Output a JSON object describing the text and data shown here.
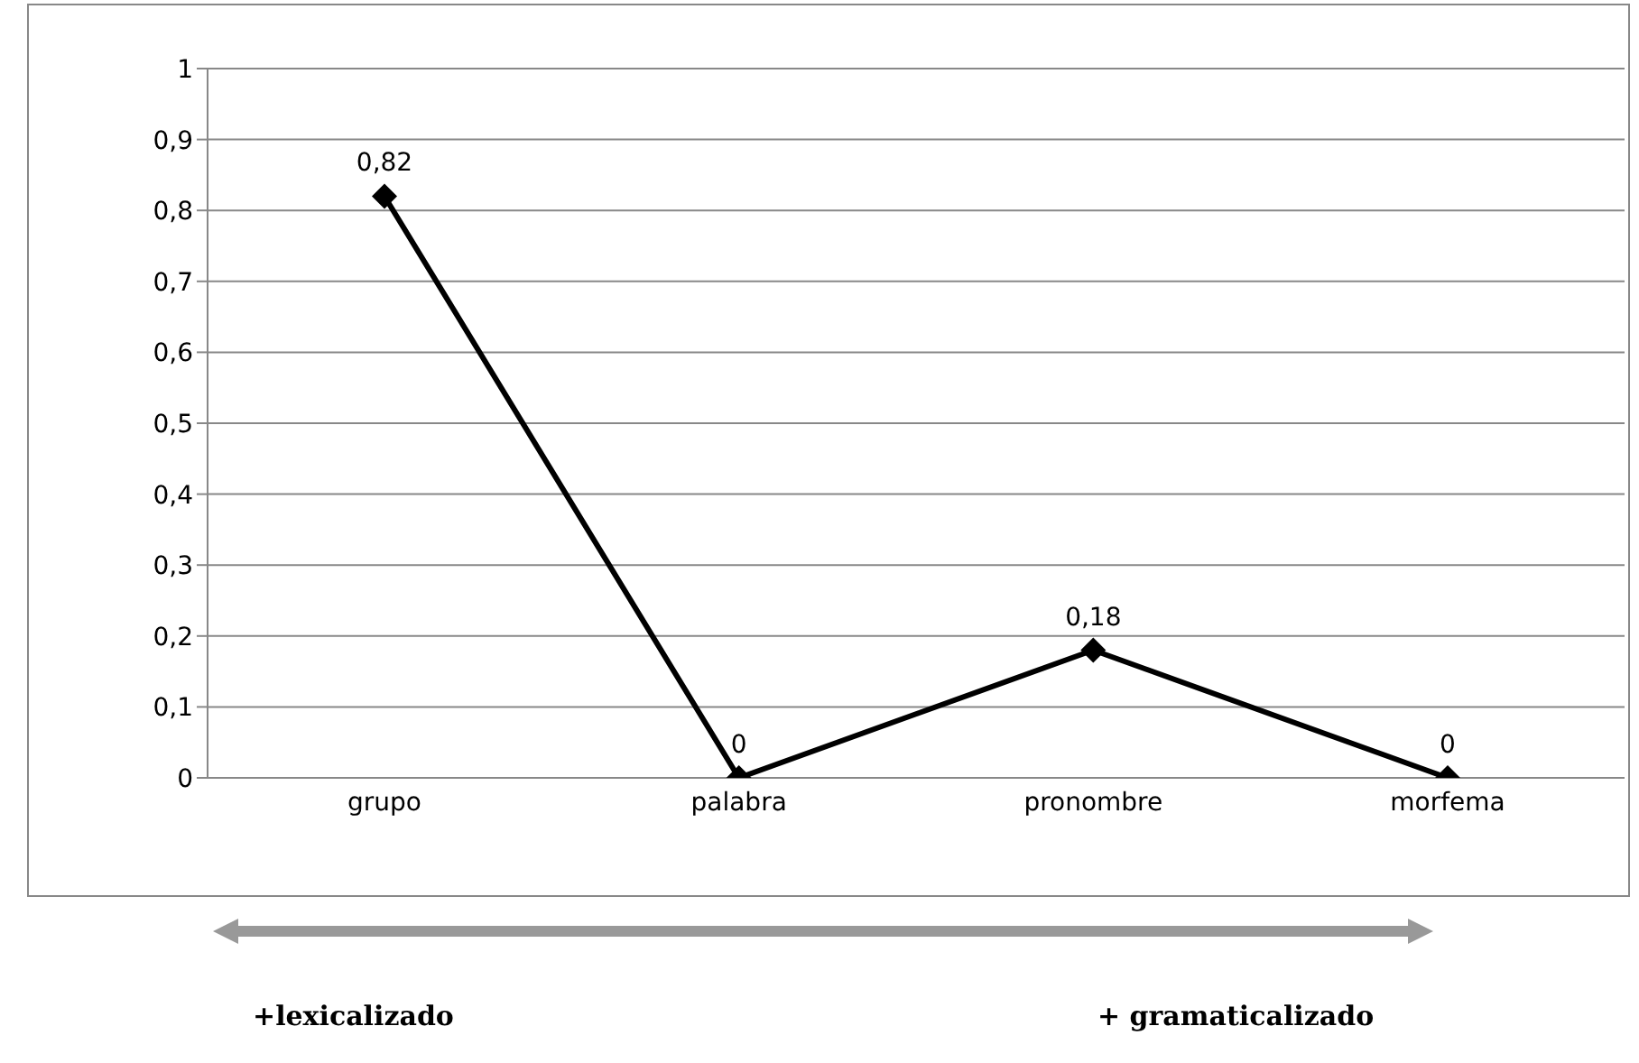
{
  "chart_data": {
    "type": "line",
    "categories": [
      "grupo",
      "palabra",
      "pronombre",
      "morfema"
    ],
    "series": [
      {
        "color": "#000000",
        "values": [
          0.82,
          0,
          0.18,
          0
        ],
        "value_labels": [
          "0,82",
          "0",
          "0,18",
          "0"
        ]
      }
    ],
    "ylim": [
      0,
      1
    ],
    "yticks": [
      0,
      {
        "value": 0.1,
        "label": "0,1"
      },
      {
        "value": 0.2,
        "label": "0,2"
      },
      {
        "value": 0.3,
        "label": "0,3"
      },
      {
        "value": 0.4,
        "label": "0,4"
      },
      {
        "value": 0.5,
        "label": "0,5"
      },
      {
        "value": 0.6,
        "label": "0,6"
      },
      {
        "value": 0.7,
        "label": "0,7"
      },
      {
        "value": 0.8,
        "label": "0,8"
      },
      {
        "value": 0.9,
        "label": "0,9"
      },
      1
    ],
    "grid": "y",
    "legend": false,
    "marker": "diamond",
    "line_style": "solid",
    "annotations": [
      "+lexicalizado",
      "+ gramaticalizado"
    ]
  }
}
